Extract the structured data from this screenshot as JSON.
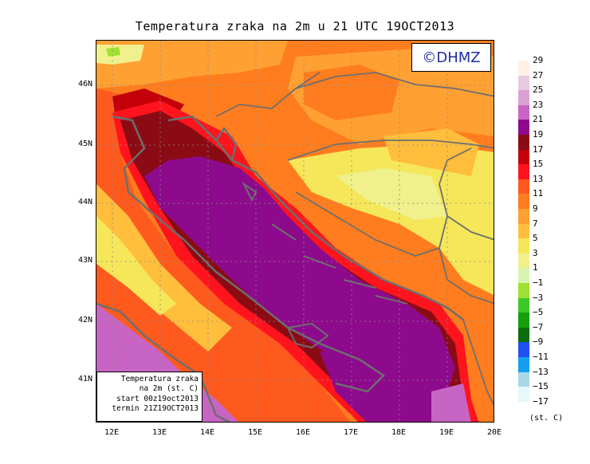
{
  "title": "Temperatura zraka na 2m u 21 UTC 19OCT2013",
  "copyright": "©DHMZ",
  "info_box": {
    "line1": "Temperatura zraka",
    "line2": "na 2m (st. C)",
    "line3": "start 00z19oct2013",
    "line4": "termin 21Z19OCT2013"
  },
  "lat_labels": [
    "46N",
    "45N",
    "44N",
    "43N",
    "42N",
    "41N"
  ],
  "lon_labels": [
    "12E",
    "13E",
    "14E",
    "15E",
    "16E",
    "17E",
    "18E",
    "19E",
    "20E"
  ],
  "legend": {
    "unit": "(st. C)",
    "items": [
      {
        "label": "29",
        "color": "#fff0e6"
      },
      {
        "label": "27",
        "color": "#e6cbdf"
      },
      {
        "label": "25",
        "color": "#dba1d2"
      },
      {
        "label": "23",
        "color": "#c865c4"
      },
      {
        "label": "21",
        "color": "#8d0a8c"
      },
      {
        "label": "19",
        "color": "#8b0b14"
      },
      {
        "label": "17",
        "color": "#c3000a"
      },
      {
        "label": "15",
        "color": "#ff141e"
      },
      {
        "label": "13",
        "color": "#ff5a1e"
      },
      {
        "label": "11",
        "color": "#ff7d1e"
      },
      {
        "label": "9",
        "color": "#ffa032"
      },
      {
        "label": "7",
        "color": "#ffbe3c"
      },
      {
        "label": "5",
        "color": "#f5e65a"
      },
      {
        "label": "3",
        "color": "#f0f08c"
      },
      {
        "label": "1",
        "color": "#d6f5b0"
      },
      {
        "label": "−1",
        "color": "#9fe032"
      },
      {
        "label": "−3",
        "color": "#3cc828"
      },
      {
        "label": "−5",
        "color": "#14a00a"
      },
      {
        "label": "−7",
        "color": "#0a6e0a"
      },
      {
        "label": "−9",
        "color": "#2050f0"
      },
      {
        "label": "−11",
        "color": "#14a0f0"
      },
      {
        "label": "−13",
        "color": "#a8d8e8"
      },
      {
        "label": "−15",
        "color": "#e6f8fa"
      },
      {
        "label": "−17",
        "color": ""
      }
    ]
  }
}
